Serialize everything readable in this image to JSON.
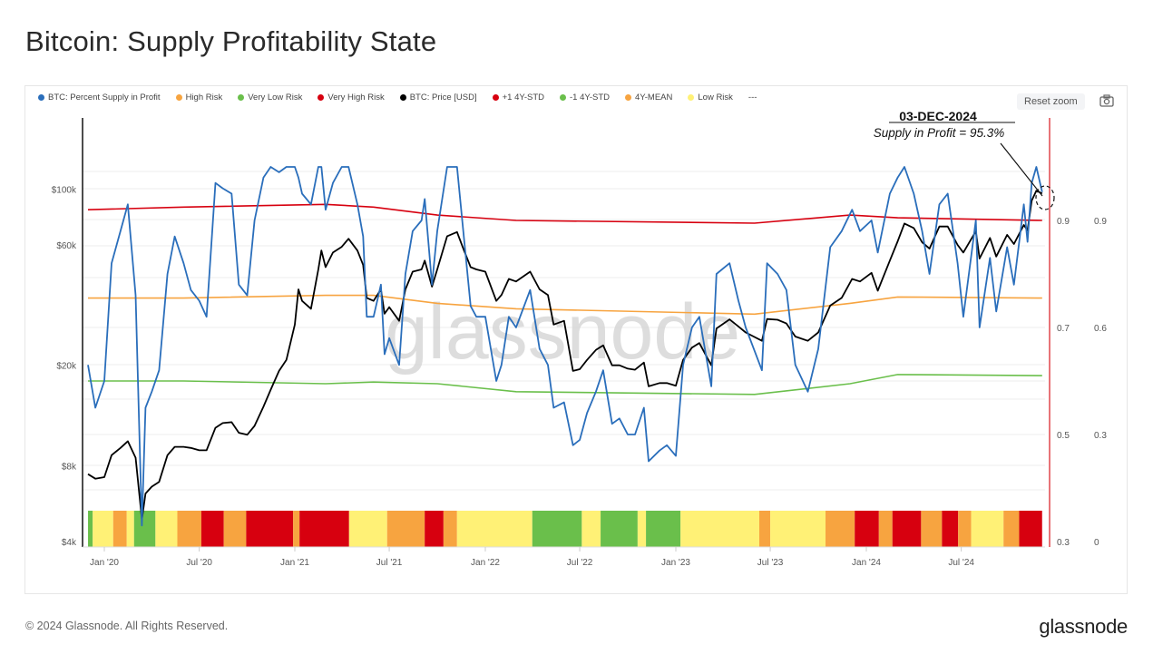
{
  "title": "Bitcoin: Supply Profitability State",
  "footer": "© 2024 Glassnode. All Rights Reserved.",
  "logo": "glassnode",
  "watermark": "glassnode",
  "toolbar": {
    "reset_zoom": "Reset zoom",
    "camera_icon": "camera-icon"
  },
  "legend": [
    {
      "label": "BTC: Percent Supply in Profit",
      "color": "#2a6ebb"
    },
    {
      "label": "High Risk",
      "color": "#f7a440"
    },
    {
      "label": "Very Low Risk",
      "color": "#6abf4b"
    },
    {
      "label": "Very High Risk",
      "color": "#d7000f"
    },
    {
      "label": "BTC: Price [USD]",
      "color": "#000000"
    },
    {
      "label": "+1 4Y-STD",
      "color": "#d7000f"
    },
    {
      "label": "-1 4Y-STD",
      "color": "#6abf4b"
    },
    {
      "label": "4Y-MEAN",
      "color": "#f7a440"
    },
    {
      "label": "Low Risk",
      "color": "#fff176"
    },
    {
      "label": "---",
      "color": ""
    }
  ],
  "annotation": {
    "date": "03-DEC-2024",
    "text": "Supply in Profit = 95.3%"
  },
  "chart_data": {
    "type": "line",
    "title": "Bitcoin: Supply Profitability State",
    "x_ticks": [
      {
        "date": "2020-01-01",
        "label": "Jan '20"
      },
      {
        "date": "2020-07-01",
        "label": "Jul '20"
      },
      {
        "date": "2021-01-01",
        "label": "Jan '21"
      },
      {
        "date": "2021-07-01",
        "label": "Jul '21"
      },
      {
        "date": "2022-01-01",
        "label": "Jan '22"
      },
      {
        "date": "2022-07-01",
        "label": "Jul '22"
      },
      {
        "date": "2023-01-01",
        "label": "Jan '23"
      },
      {
        "date": "2023-07-01",
        "label": "Jul '23"
      },
      {
        "date": "2024-01-01",
        "label": "Jan '24"
      },
      {
        "date": "2024-07-01",
        "label": "Jul '24"
      }
    ],
    "xlim": [
      "2019-11-20",
      "2024-12-03"
    ],
    "y_price": {
      "scale": "log",
      "range": [
        4000,
        100000
      ],
      "ticks": [
        {
          "v": 4000,
          "label": "$4k"
        },
        {
          "v": 8000,
          "label": "$8k"
        },
        {
          "v": 20000,
          "label": "$20k"
        },
        {
          "v": 60000,
          "label": "$60k"
        },
        {
          "v": 100000,
          "label": "$100k"
        }
      ]
    },
    "y_profit": {
      "scale": "linear",
      "range": [
        0.3,
        1.0
      ],
      "ticks": [
        {
          "v": 0.3,
          "label": "0.3"
        },
        {
          "v": 0.5,
          "label": "0.5"
        },
        {
          "v": 0.7,
          "label": "0.7"
        },
        {
          "v": 0.9,
          "label": "0.9"
        }
      ]
    },
    "y_risk": {
      "scale": "linear",
      "ticks": [
        {
          "v": 0,
          "label": "0"
        },
        {
          "v": 0.3,
          "label": "0.3"
        },
        {
          "v": 0.6,
          "label": "0.6"
        },
        {
          "v": 0.9,
          "label": "0.9"
        }
      ]
    },
    "dates": [
      "2019-12-01",
      "2019-12-15",
      "2020-01-01",
      "2020-01-15",
      "2020-02-01",
      "2020-02-15",
      "2020-03-01",
      "2020-03-13",
      "2020-03-20",
      "2020-04-01",
      "2020-04-15",
      "2020-05-01",
      "2020-05-15",
      "2020-06-01",
      "2020-06-15",
      "2020-07-01",
      "2020-07-15",
      "2020-08-01",
      "2020-08-15",
      "2020-09-01",
      "2020-09-15",
      "2020-10-01",
      "2020-10-15",
      "2020-11-01",
      "2020-11-15",
      "2020-12-01",
      "2020-12-15",
      "2021-01-01",
      "2021-01-08",
      "2021-01-15",
      "2021-02-01",
      "2021-02-15",
      "2021-02-21",
      "2021-03-01",
      "2021-03-15",
      "2021-04-01",
      "2021-04-14",
      "2021-05-01",
      "2021-05-12",
      "2021-05-19",
      "2021-06-01",
      "2021-06-15",
      "2021-06-22",
      "2021-07-01",
      "2021-07-20",
      "2021-08-01",
      "2021-08-15",
      "2021-09-01",
      "2021-09-07",
      "2021-09-21",
      "2021-10-01",
      "2021-10-20",
      "2021-11-08",
      "2021-11-20",
      "2021-12-04",
      "2021-12-15",
      "2022-01-01",
      "2022-01-22",
      "2022-02-01",
      "2022-02-15",
      "2022-03-01",
      "2022-03-28",
      "2022-04-15",
      "2022-05-01",
      "2022-05-12",
      "2022-06-01",
      "2022-06-18",
      "2022-07-01",
      "2022-07-15",
      "2022-08-01",
      "2022-08-15",
      "2022-09-01",
      "2022-09-15",
      "2022-10-01",
      "2022-10-15",
      "2022-11-01",
      "2022-11-10",
      "2022-12-01",
      "2022-12-15",
      "2023-01-01",
      "2023-01-15",
      "2023-02-01",
      "2023-02-15",
      "2023-03-10",
      "2023-03-20",
      "2023-04-14",
      "2023-05-01",
      "2023-05-15",
      "2023-06-15",
      "2023-06-25",
      "2023-07-15",
      "2023-08-01",
      "2023-08-18",
      "2023-09-11",
      "2023-10-01",
      "2023-10-24",
      "2023-11-15",
      "2023-12-05",
      "2023-12-20",
      "2024-01-11",
      "2024-01-23",
      "2024-02-15",
      "2024-03-01",
      "2024-03-14",
      "2024-04-01",
      "2024-04-17",
      "2024-05-01",
      "2024-05-20",
      "2024-06-05",
      "2024-06-24",
      "2024-07-05",
      "2024-07-29",
      "2024-08-05",
      "2024-08-25",
      "2024-09-06",
      "2024-09-27",
      "2024-10-10",
      "2024-10-29",
      "2024-11-05",
      "2024-11-13",
      "2024-11-22",
      "2024-12-03"
    ],
    "series": [
      {
        "name": "BTC: Price [USD]",
        "axis": "price",
        "color": "#000000",
        "values": [
          7400,
          7100,
          7200,
          8800,
          9400,
          10000,
          8600,
          4900,
          6200,
          6600,
          6900,
          8800,
          9500,
          9500,
          9400,
          9200,
          9200,
          11300,
          11800,
          11900,
          10800,
          10600,
          11500,
          13700,
          16000,
          19000,
          21000,
          29000,
          40000,
          36000,
          33500,
          48000,
          57000,
          49000,
          56000,
          59000,
          63500,
          57000,
          50000,
          37000,
          36000,
          40000,
          32000,
          34000,
          30000,
          40000,
          47000,
          48000,
          52000,
          41000,
          48000,
          65000,
          67500,
          58000,
          49000,
          48000,
          47000,
          36000,
          38000,
          44000,
          43000,
          47000,
          40000,
          38000,
          29000,
          30000,
          19000,
          19300,
          21000,
          23000,
          24000,
          20000,
          20000,
          19400,
          19200,
          20500,
          16500,
          17000,
          17000,
          16600,
          21000,
          23500,
          24500,
          20000,
          28000,
          30400,
          28500,
          27000,
          25000,
          30500,
          30300,
          29300,
          26000,
          25000,
          27000,
          34500,
          37000,
          44000,
          43000,
          46500,
          39500,
          52000,
          62000,
          73000,
          70000,
          61500,
          58000,
          71000,
          71000,
          60000,
          56000,
          68000,
          53000,
          64000,
          54000,
          65800,
          60500,
          72000,
          68500,
          90000,
          98500,
          96000
        ]
      },
      {
        "name": "BTC: Percent Supply in Profit",
        "axis": "profit",
        "color": "#2a6ebb",
        "values": [
          0.63,
          0.55,
          0.6,
          0.82,
          0.88,
          0.93,
          0.76,
          0.33,
          0.55,
          0.58,
          0.62,
          0.8,
          0.87,
          0.82,
          0.77,
          0.75,
          0.72,
          0.97,
          0.96,
          0.95,
          0.78,
          0.76,
          0.9,
          0.98,
          1.0,
          0.99,
          1.0,
          1.0,
          0.98,
          0.95,
          0.93,
          1.0,
          1.0,
          0.92,
          0.97,
          1.0,
          1.0,
          0.93,
          0.87,
          0.72,
          0.72,
          0.78,
          0.65,
          0.68,
          0.63,
          0.8,
          0.88,
          0.9,
          0.94,
          0.78,
          0.88,
          1.0,
          1.0,
          0.88,
          0.74,
          0.72,
          0.72,
          0.6,
          0.63,
          0.72,
          0.7,
          0.77,
          0.66,
          0.63,
          0.55,
          0.56,
          0.48,
          0.49,
          0.54,
          0.58,
          0.62,
          0.52,
          0.53,
          0.5,
          0.5,
          0.55,
          0.45,
          0.47,
          0.48,
          0.46,
          0.63,
          0.7,
          0.72,
          0.59,
          0.8,
          0.82,
          0.75,
          0.7,
          0.62,
          0.82,
          0.8,
          0.77,
          0.63,
          0.58,
          0.66,
          0.85,
          0.88,
          0.92,
          0.88,
          0.9,
          0.84,
          0.95,
          0.98,
          1.0,
          0.95,
          0.88,
          0.8,
          0.93,
          0.95,
          0.82,
          0.72,
          0.9,
          0.7,
          0.83,
          0.73,
          0.85,
          0.78,
          0.93,
          0.86,
          0.97,
          1.0,
          0.953
        ]
      }
    ],
    "bands": {
      "dates": [
        "2019-12-01",
        "2020-06-01",
        "2021-03-01",
        "2021-06-01",
        "2021-10-01",
        "2022-03-01",
        "2023-06-01",
        "2023-12-01",
        "2024-03-01",
        "2024-12-03"
      ],
      "lines": [
        {
          "name": "+1 4Y-STD",
          "color": "#d7000f",
          "values": [
            0.92,
            0.925,
            0.93,
            0.925,
            0.91,
            0.9,
            0.895,
            0.91,
            0.905,
            0.9
          ]
        },
        {
          "name": "4Y-MEAN",
          "color": "#f7a440",
          "values": [
            0.755,
            0.755,
            0.76,
            0.76,
            0.745,
            0.735,
            0.725,
            0.745,
            0.757,
            0.755
          ]
        },
        {
          "name": "-1 4Y-STD",
          "color": "#6abf4b",
          "values": [
            0.6,
            0.6,
            0.595,
            0.598,
            0.595,
            0.58,
            0.575,
            0.595,
            0.612,
            0.61
          ]
        }
      ]
    },
    "risk_colors": {
      "verylow": "#6abf4b",
      "low": "#fff176",
      "high": "#f7a440",
      "veryhigh": "#d7000f"
    },
    "risk_segments": [
      [
        "2019-12-01",
        "2019-12-10",
        "verylow"
      ],
      [
        "2019-12-10",
        "2020-01-18",
        "low"
      ],
      [
        "2020-01-18",
        "2020-02-13",
        "high"
      ],
      [
        "2020-02-13",
        "2020-02-27",
        "low"
      ],
      [
        "2020-02-27",
        "2020-04-08",
        "verylow"
      ],
      [
        "2020-04-08",
        "2020-05-20",
        "low"
      ],
      [
        "2020-05-20",
        "2020-07-05",
        "high"
      ],
      [
        "2020-07-05",
        "2020-08-17",
        "veryhigh"
      ],
      [
        "2020-08-17",
        "2020-09-29",
        "high"
      ],
      [
        "2020-09-29",
        "2020-12-28",
        "veryhigh"
      ],
      [
        "2020-12-28",
        "2021-01-10",
        "high"
      ],
      [
        "2021-01-10",
        "2021-04-15",
        "veryhigh"
      ],
      [
        "2021-04-15",
        "2021-06-27",
        "low"
      ],
      [
        "2021-06-27",
        "2021-09-07",
        "high"
      ],
      [
        "2021-09-07",
        "2021-10-13",
        "veryhigh"
      ],
      [
        "2021-10-13",
        "2021-11-08",
        "high"
      ],
      [
        "2021-11-08",
        "2022-04-01",
        "low"
      ],
      [
        "2022-04-01",
        "2022-07-05",
        "verylow"
      ],
      [
        "2022-07-05",
        "2022-08-10",
        "low"
      ],
      [
        "2022-08-10",
        "2022-10-20",
        "verylow"
      ],
      [
        "2022-10-20",
        "2022-11-05",
        "low"
      ],
      [
        "2022-11-05",
        "2023-01-10",
        "verylow"
      ],
      [
        "2023-01-10",
        "2023-06-10",
        "low"
      ],
      [
        "2023-06-10",
        "2023-07-01",
        "high"
      ],
      [
        "2023-07-01",
        "2023-10-15",
        "low"
      ],
      [
        "2023-10-15",
        "2023-12-10",
        "high"
      ],
      [
        "2023-12-10",
        "2024-01-25",
        "veryhigh"
      ],
      [
        "2024-01-25",
        "2024-02-20",
        "high"
      ],
      [
        "2024-02-20",
        "2024-04-15",
        "veryhigh"
      ],
      [
        "2024-04-15",
        "2024-05-25",
        "high"
      ],
      [
        "2024-05-25",
        "2024-06-25",
        "veryhigh"
      ],
      [
        "2024-06-25",
        "2024-07-20",
        "high"
      ],
      [
        "2024-07-20",
        "2024-09-20",
        "low"
      ],
      [
        "2024-09-20",
        "2024-10-20",
        "high"
      ],
      [
        "2024-10-20",
        "2024-12-03",
        "veryhigh"
      ]
    ],
    "grid": true,
    "legend_position": "top-left"
  }
}
